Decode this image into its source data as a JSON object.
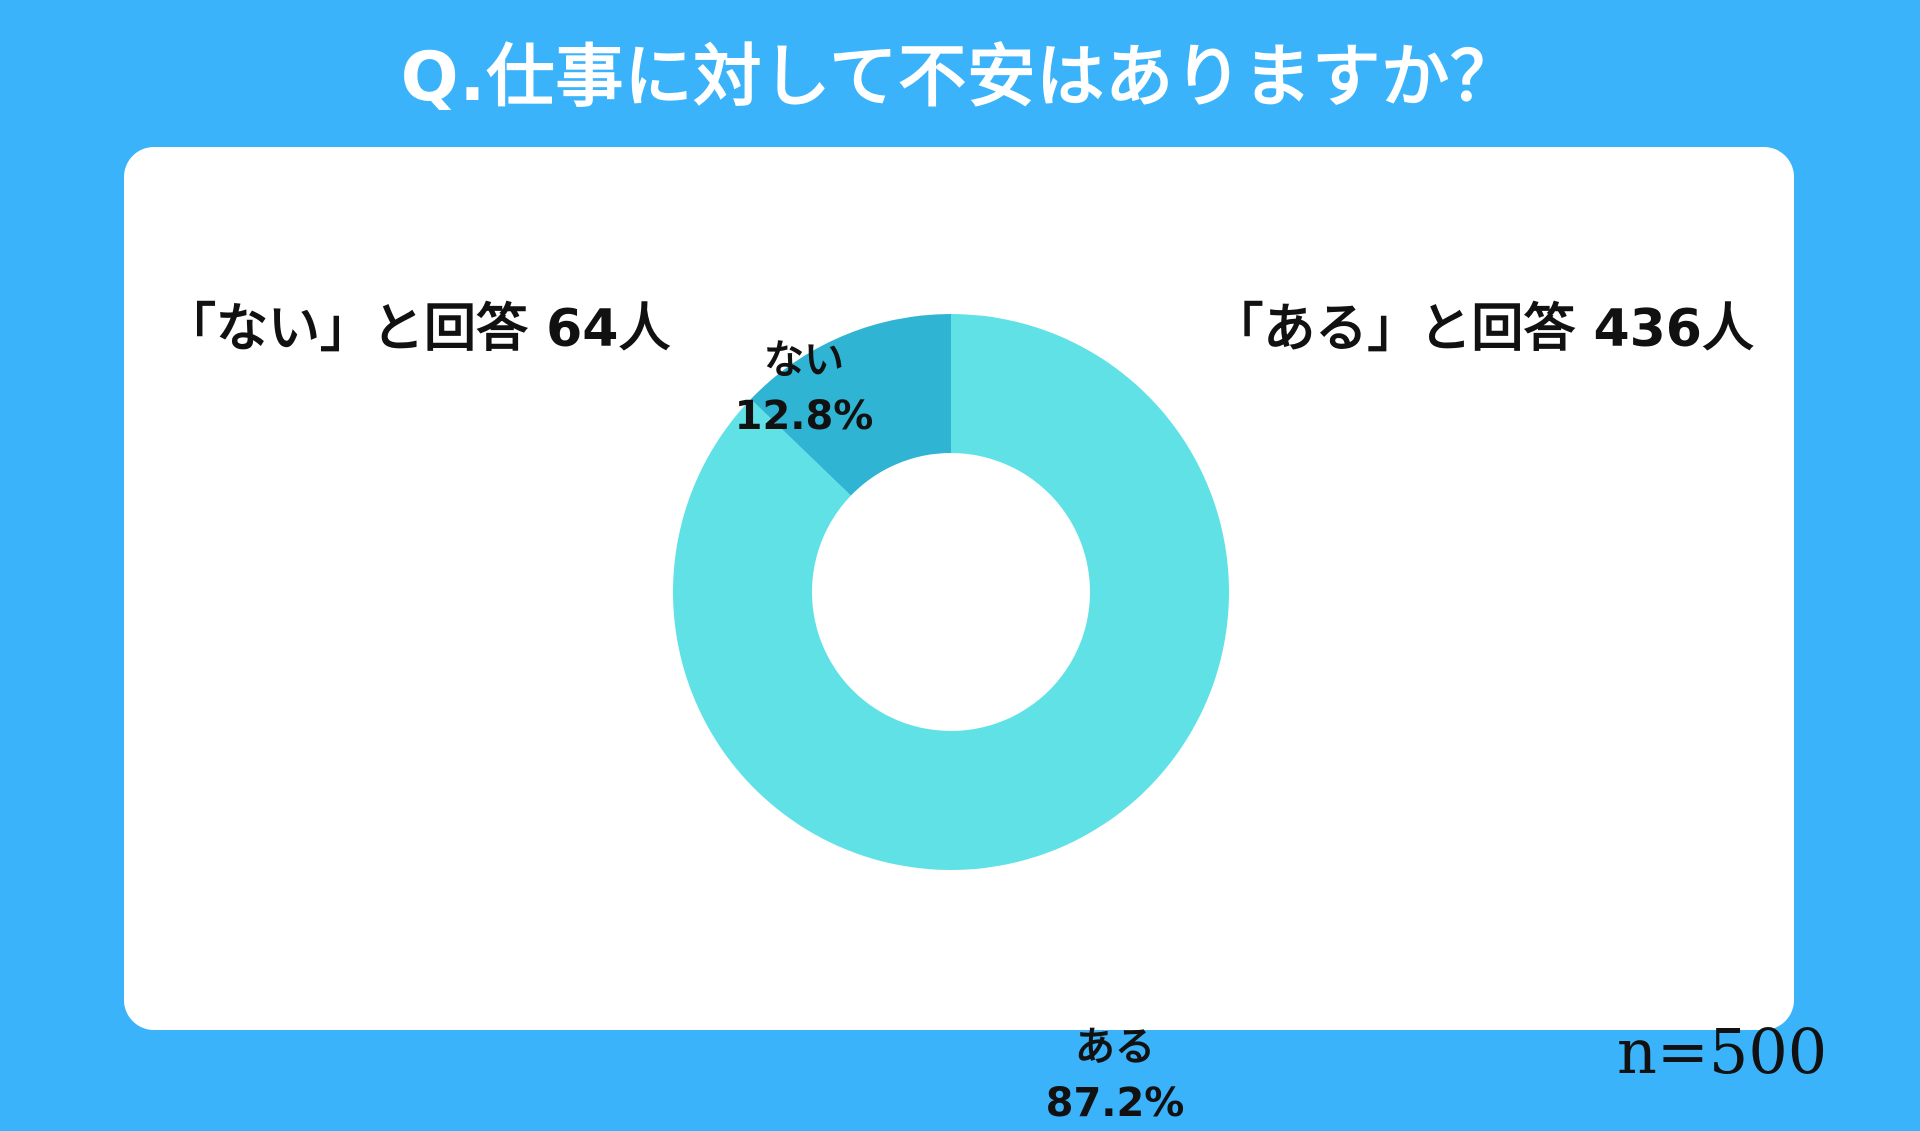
{
  "title": "Q.仕事に対して不安はありますか？",
  "summary": {
    "no": "「ない」と回答 64人",
    "yes": "「ある」と回答 436人"
  },
  "sample_size": "n=500",
  "colors": {
    "background": "#3bb3fb",
    "card": "#ffffff",
    "yes_slice": "#60e1e6",
    "no_slice": "#2fb4d3"
  },
  "chart_data": {
    "type": "pie",
    "variant": "donut",
    "title": "Q.仕事に対して不安はありますか？",
    "categories": [
      "ない",
      "ある"
    ],
    "values": [
      12.8,
      87.2
    ],
    "value_labels": [
      "12.8%",
      "87.2%"
    ],
    "counts": [
      64,
      436
    ],
    "colors": [
      "#2fb4d3",
      "#60e1e6"
    ],
    "start": "12 o'clock, counter-clockwise from ない",
    "legend": "none"
  }
}
